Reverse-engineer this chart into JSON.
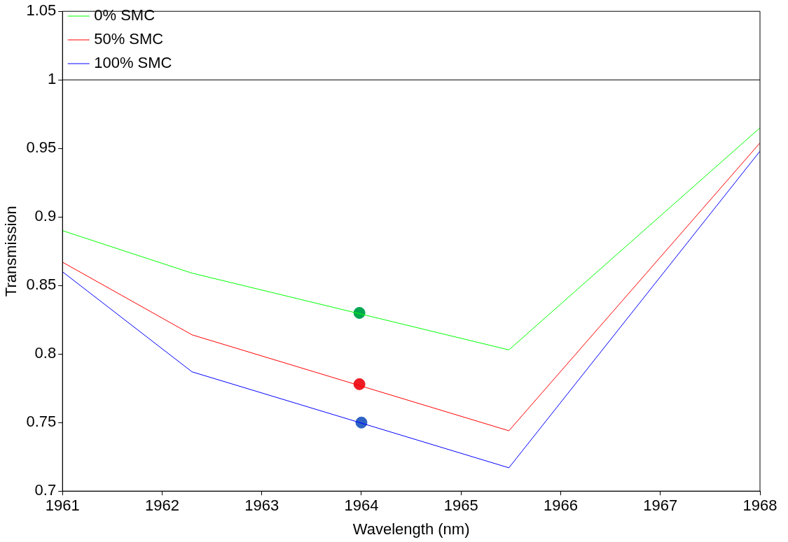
{
  "chart_data": {
    "type": "line",
    "xlabel": "Wavelength (nm)",
    "ylabel": "Transmission",
    "xlim": [
      1961,
      1968
    ],
    "xticks": [
      1961,
      1962,
      1963,
      1964,
      1965,
      1966,
      1967,
      1968
    ],
    "ylim": [
      0.7,
      1.05
    ],
    "yticks": [
      0.7,
      0.75,
      0.8,
      0.85,
      0.9,
      0.95,
      1,
      1.05
    ],
    "grid": false,
    "legend": "top left",
    "marker": "none",
    "line_style": "solid",
    "series": [
      {
        "name": "0% SMC",
        "color": "#00ff00",
        "x": [
          1961,
          1962.3,
          1965.48,
          1968
        ],
        "values": [
          0.89,
          0.859,
          0.803,
          0.965
        ]
      },
      {
        "name": "50% SMC",
        "color": "#ff0000",
        "x": [
          1961,
          1962.3,
          1965.48,
          1968
        ],
        "values": [
          0.867,
          0.814,
          0.744,
          0.954
        ]
      },
      {
        "name": "100% SMC",
        "color": "#0000ff",
        "x": [
          1961,
          1962.3,
          1965.48,
          1968
        ],
        "values": [
          0.86,
          0.787,
          0.717,
          0.948
        ]
      },
      {
        "color": "#000000",
        "x": [
          1961,
          1968
        ],
        "values": [
          1,
          1
        ]
      },
      {
        "type": "scatter",
        "marker": "circle",
        "color": "#00a651",
        "x": [
          1963.98
        ],
        "values": [
          0.83
        ]
      },
      {
        "type": "scatter",
        "marker": "circle",
        "color": "#ee1c25",
        "x": [
          1963.98
        ],
        "values": [
          0.778
        ]
      },
      {
        "type": "scatter",
        "marker": "circle",
        "color": "#2e63c4",
        "x": [
          1964
        ],
        "values": [
          0.75
        ]
      }
    ]
  }
}
